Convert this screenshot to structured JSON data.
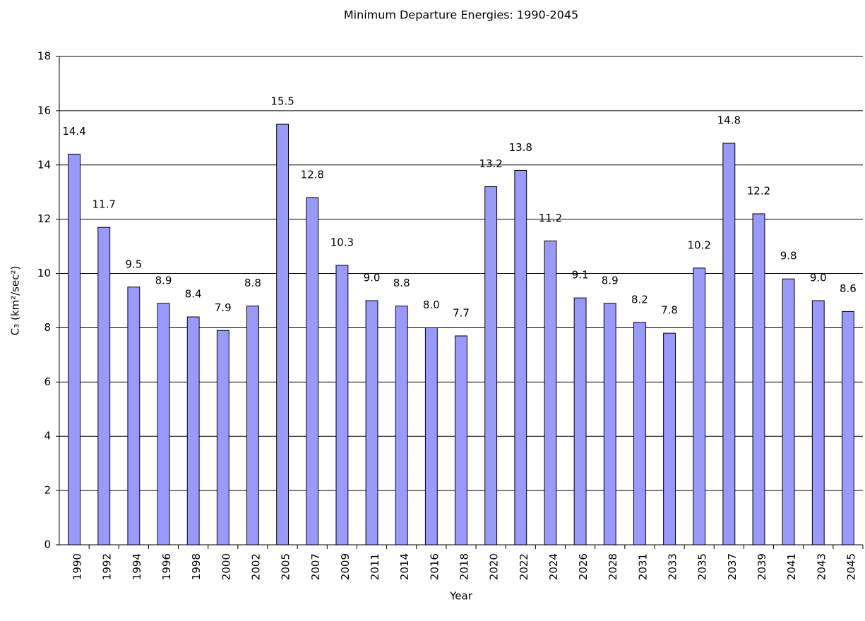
{
  "chart_data": {
    "type": "bar",
    "title": "Minimum Departure Energies: 1990-2045",
    "x_label": "Year",
    "y_label": "C₃ (km²/sec²)",
    "categories": [
      "1990",
      "1992",
      "1994",
      "1996",
      "1998",
      "2000",
      "2002",
      "2005",
      "2007",
      "2009",
      "2011",
      "2014",
      "2016",
      "2018",
      "2020",
      "2022",
      "2024",
      "2026",
      "2028",
      "2031",
      "2033",
      "2035",
      "2037",
      "2039",
      "2041",
      "2043",
      "2045"
    ],
    "values": [
      14.4,
      11.7,
      9.5,
      8.9,
      8.4,
      7.9,
      8.8,
      15.5,
      12.8,
      10.3,
      9.0,
      8.8,
      8.0,
      7.7,
      13.2,
      13.8,
      11.2,
      9.1,
      8.9,
      8.2,
      7.8,
      10.2,
      14.8,
      12.2,
      9.8,
      9.0,
      8.6
    ],
    "value_labels": [
      "14.4",
      "11.7",
      "9.5",
      "8.9",
      "8.4",
      "7.9",
      "8.8",
      "15.5",
      "12.8",
      "10.3",
      "9.0",
      "8.8",
      "8.0",
      "7.7",
      "13.2",
      "13.8",
      "11.2",
      "9.1",
      "8.9",
      "8.2",
      "7.8",
      "10.2",
      "14.8",
      "12.2",
      "9.8",
      "9.0",
      "8.6"
    ],
    "color": "#9999ff",
    "ylim": [
      0,
      18
    ],
    "yticks": [
      0,
      2,
      4,
      6,
      8,
      10,
      12,
      14,
      16,
      18
    ],
    "grid": true
  }
}
